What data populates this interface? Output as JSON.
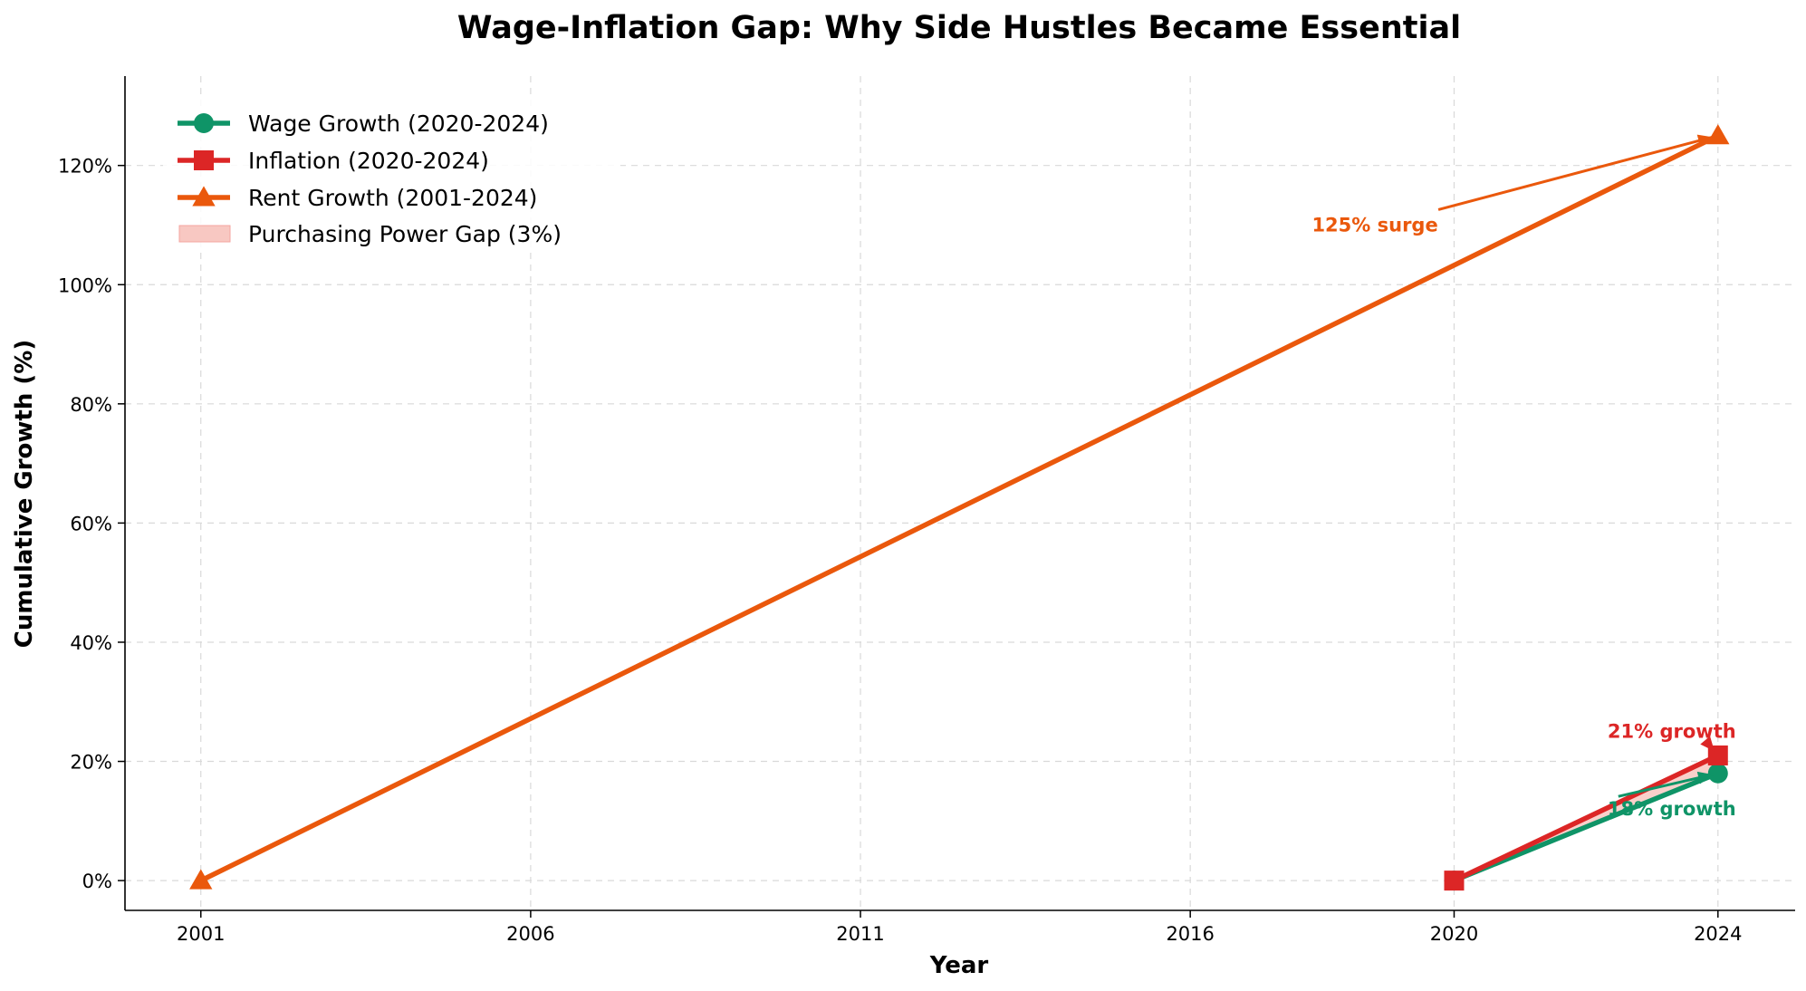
{
  "chart_data": {
    "type": "line",
    "title": "Wage-Inflation Gap: Why Side Hustles Became Essential",
    "xlabel": "Year",
    "ylabel": "Cumulative Growth (%)",
    "x_ticks": [
      2001,
      2006,
      2011,
      2016,
      2020,
      2024
    ],
    "x_tick_labels": [
      "2001",
      "2006",
      "2011",
      "2016",
      "2020",
      "2024"
    ],
    "y_ticks": [
      0,
      20,
      40,
      60,
      80,
      100,
      120
    ],
    "y_tick_labels": [
      "0%",
      "20%",
      "40%",
      "60%",
      "80%",
      "100%",
      "120%"
    ],
    "ylim": [
      -5,
      135
    ],
    "grid": true,
    "legend_position": "top-left",
    "series": [
      {
        "name": "Wage Growth (2020-2024)",
        "color": "#0f9467",
        "marker": "circle",
        "x": [
          2020,
          2024
        ],
        "y": [
          0,
          18
        ]
      },
      {
        "name": "Inflation (2020-2024)",
        "color": "#dc2626",
        "marker": "square",
        "x": [
          2020,
          2024
        ],
        "y": [
          0,
          21
        ]
      },
      {
        "name": "Rent Growth (2001-2024)",
        "color": "#ea580c",
        "marker": "triangle",
        "x": [
          2001,
          2024
        ],
        "y": [
          0,
          125
        ]
      }
    ],
    "fill_between": {
      "name": "Purchasing Power Gap (3%)",
      "color": "#f8c8c2",
      "x": [
        2020,
        2024
      ],
      "lower": [
        0,
        18
      ],
      "upper": [
        0,
        21
      ]
    },
    "annotations": [
      {
        "text": "125% surge",
        "color": "#ea580c",
        "point": [
          2024,
          125
        ],
        "text_pos": [
          2018.8,
          110
        ]
      },
      {
        "text": "21% growth",
        "color": "#dc2626",
        "point": [
          2024,
          21
        ],
        "text_pos": [
          2023.3,
          25
        ]
      },
      {
        "text": "18% growth",
        "color": "#0f9467",
        "point": [
          2024,
          18
        ],
        "text_pos": [
          2023.3,
          12
        ]
      }
    ]
  }
}
